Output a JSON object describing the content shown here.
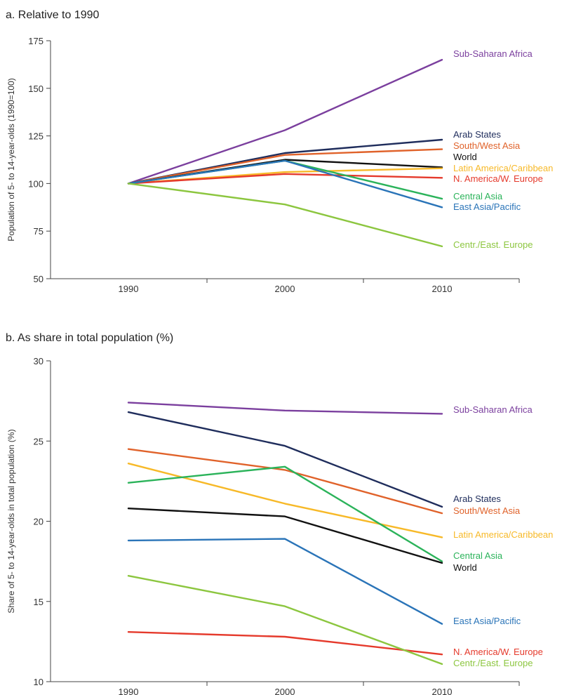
{
  "chart_data": [
    {
      "type": "line",
      "title": "a. Relative to 1990",
      "xlabel": "",
      "ylabel": "Population of 5- to 14-year-olds (1990=100)",
      "x": [
        "1990",
        "2000",
        "2010"
      ],
      "yticks": [
        "50",
        "75",
        "100",
        "125",
        "150",
        "175"
      ],
      "ylim": [
        50,
        175
      ],
      "grid": false,
      "legend": "direct labels at line ends",
      "series": [
        {
          "name": "Sub-Saharan Africa",
          "color": "#7b3f9e",
          "values": [
            100,
            128,
            165
          ]
        },
        {
          "name": "Arab States",
          "color": "#1f2d5c",
          "values": [
            100,
            116,
            123
          ]
        },
        {
          "name": "South/West Asia",
          "color": "#e0622a",
          "values": [
            100,
            115,
            118
          ]
        },
        {
          "name": "World",
          "color": "#111111",
          "values": [
            100,
            112.5,
            108.5
          ]
        },
        {
          "name": "Latin America/Caribbean",
          "color": "#f7b928",
          "values": [
            100,
            106,
            108
          ]
        },
        {
          "name": "N. America/W. Europe",
          "color": "#e53a2c",
          "values": [
            100,
            105,
            103
          ]
        },
        {
          "name": "Central Asia",
          "color": "#2bb35a",
          "values": [
            100,
            112,
            92
          ]
        },
        {
          "name": "East Asia/Pacific",
          "color": "#2a74b8",
          "values": [
            100,
            112,
            87.5
          ]
        },
        {
          "name": "Centr./East. Europe",
          "color": "#8cc63f",
          "values": [
            100,
            89,
            67
          ]
        }
      ]
    },
    {
      "type": "line",
      "title": "b. As share in total population (%)",
      "xlabel": "",
      "ylabel": "Share of 5- to 14-year-olds in total population (%)",
      "x": [
        "1990",
        "2000",
        "2010"
      ],
      "yticks": [
        "10",
        "15",
        "20",
        "25",
        "30"
      ],
      "ylim": [
        10,
        30
      ],
      "grid": false,
      "legend": "direct labels at line ends",
      "series": [
        {
          "name": "Sub-Saharan Africa",
          "color": "#7b3f9e",
          "values": [
            27.4,
            26.9,
            26.7
          ]
        },
        {
          "name": "Arab States",
          "color": "#1f2d5c",
          "values": [
            26.8,
            24.7,
            20.9
          ]
        },
        {
          "name": "South/West Asia",
          "color": "#e0622a",
          "values": [
            24.5,
            23.2,
            20.5
          ]
        },
        {
          "name": "Latin America/Caribbean",
          "color": "#f7b928",
          "values": [
            23.6,
            21.1,
            19.0
          ]
        },
        {
          "name": "Central Asia",
          "color": "#2bb35a",
          "values": [
            22.4,
            23.4,
            17.5
          ]
        },
        {
          "name": "World",
          "color": "#111111",
          "values": [
            20.8,
            20.3,
            17.4
          ]
        },
        {
          "name": "East Asia/Pacific",
          "color": "#2a74b8",
          "values": [
            18.8,
            18.9,
            13.6
          ]
        },
        {
          "name": "N. America/W. Europe",
          "color": "#e53a2c",
          "values": [
            13.1,
            12.8,
            11.7
          ]
        },
        {
          "name": "Centr./East. Europe",
          "color": "#8cc63f",
          "values": [
            16.6,
            14.7,
            11.1
          ]
        }
      ]
    }
  ]
}
